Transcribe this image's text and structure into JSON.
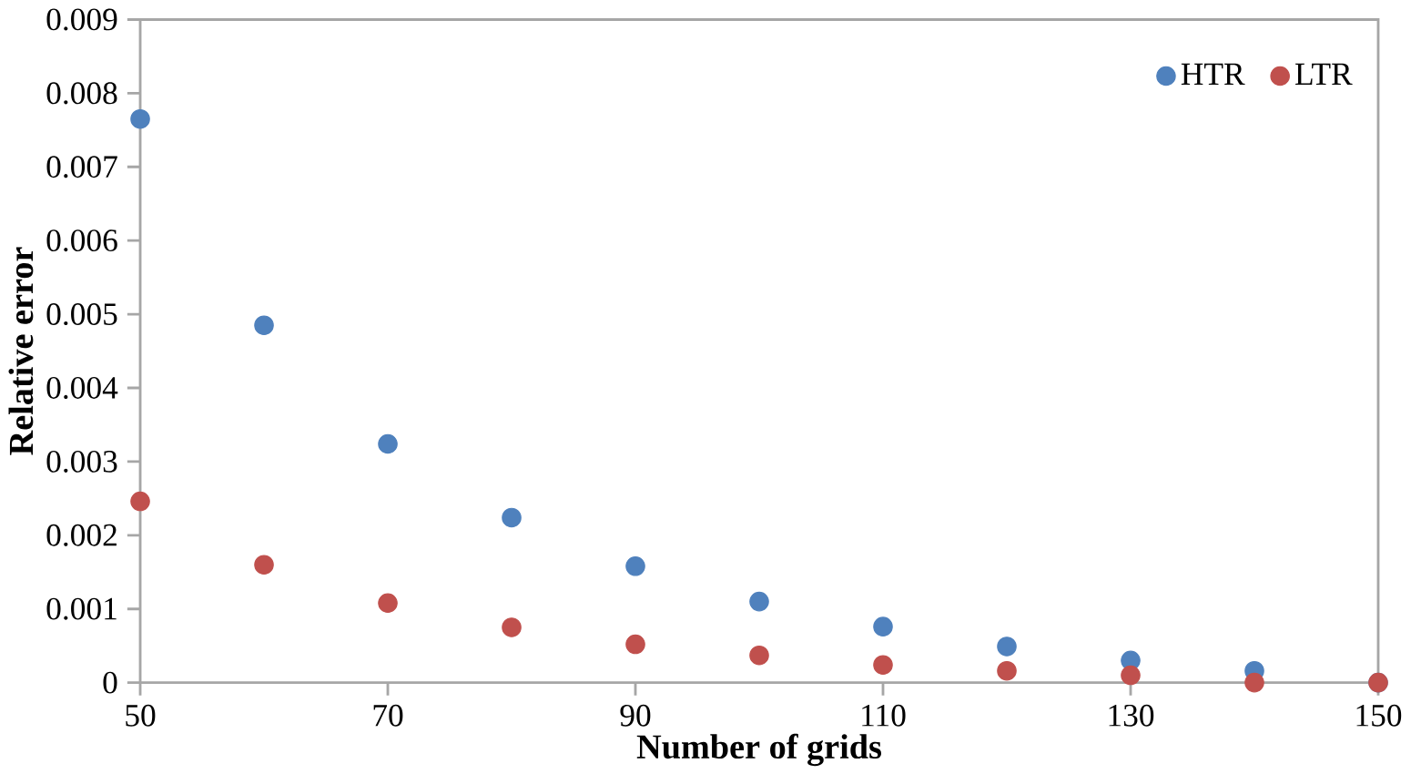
{
  "chart_data": {
    "type": "scatter",
    "xlabel": "Number of grids",
    "ylabel": "Relative error",
    "x": [
      50,
      60,
      70,
      80,
      90,
      100,
      110,
      120,
      130,
      140,
      150
    ],
    "series": [
      {
        "name": "HTR",
        "color": "#4f81bd",
        "values": [
          0.00765,
          0.00485,
          0.00324,
          0.00224,
          0.00158,
          0.0011,
          0.00076,
          0.00049,
          0.0003,
          0.00016,
          0
        ]
      },
      {
        "name": "LTR",
        "color": "#c0504d",
        "values": [
          0.00246,
          0.0016,
          0.00108,
          0.00075,
          0.00052,
          0.00037,
          0.00024,
          0.00016,
          0.0001,
          0,
          0
        ]
      }
    ],
    "xlim": [
      50,
      150
    ],
    "xticks": [
      50,
      70,
      90,
      110,
      130,
      150
    ],
    "ylim": [
      0,
      0.009
    ],
    "yticks": [
      0,
      0.001,
      0.002,
      0.003,
      0.004,
      0.005,
      0.006,
      0.007,
      0.008,
      0.009
    ],
    "grid": false,
    "legend": "top right",
    "marker": "circle"
  }
}
